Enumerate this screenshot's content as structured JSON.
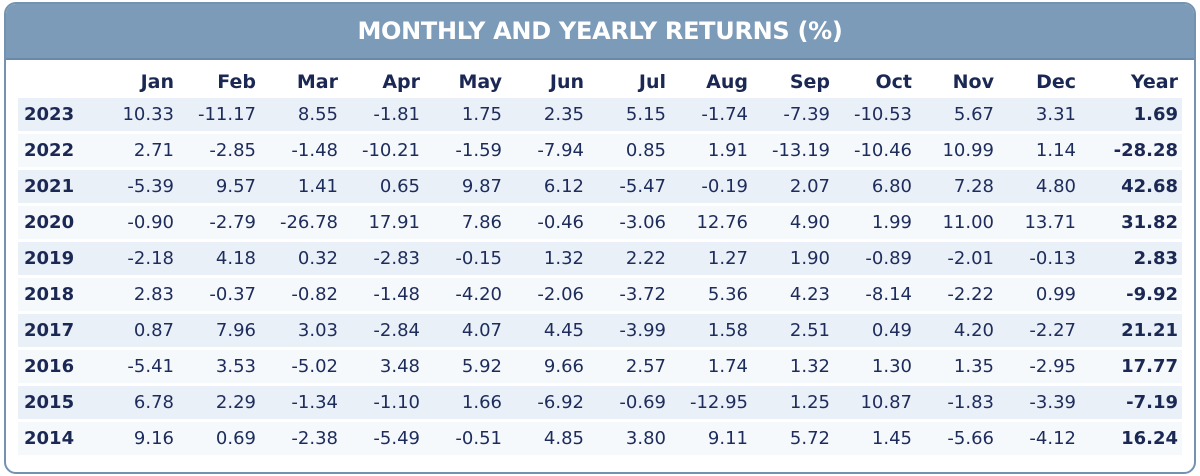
{
  "title": "MONTHLY AND YEARLY RETURNS (%)",
  "columns": [
    "",
    "Jan",
    "Feb",
    "Mar",
    "Apr",
    "May",
    "Jun",
    "Jul",
    "Aug",
    "Sep",
    "Oct",
    "Nov",
    "Dec",
    "Year"
  ],
  "rows": [
    {
      "year": "2023",
      "months": [
        "10.33",
        "-11.17",
        "8.55",
        "-1.81",
        "1.75",
        "2.35",
        "5.15",
        "-1.74",
        "-7.39",
        "-10.53",
        "5.67",
        "3.31"
      ],
      "total": "1.69"
    },
    {
      "year": "2022",
      "months": [
        "2.71",
        "-2.85",
        "-1.48",
        "-10.21",
        "-1.59",
        "-7.94",
        "0.85",
        "1.91",
        "-13.19",
        "-10.46",
        "10.99",
        "1.14"
      ],
      "total": "-28.28"
    },
    {
      "year": "2021",
      "months": [
        "-5.39",
        "9.57",
        "1.41",
        "0.65",
        "9.87",
        "6.12",
        "-5.47",
        "-0.19",
        "2.07",
        "6.80",
        "7.28",
        "4.80"
      ],
      "total": "42.68"
    },
    {
      "year": "2020",
      "months": [
        "-0.90",
        "-2.79",
        "-26.78",
        "17.91",
        "7.86",
        "-0.46",
        "-3.06",
        "12.76",
        "4.90",
        "1.99",
        "11.00",
        "13.71"
      ],
      "total": "31.82"
    },
    {
      "year": "2019",
      "months": [
        "-2.18",
        "4.18",
        "0.32",
        "-2.83",
        "-0.15",
        "1.32",
        "2.22",
        "1.27",
        "1.90",
        "-0.89",
        "-2.01",
        "-0.13"
      ],
      "total": "2.83"
    },
    {
      "year": "2018",
      "months": [
        "2.83",
        "-0.37",
        "-0.82",
        "-1.48",
        "-4.20",
        "-2.06",
        "-3.72",
        "5.36",
        "4.23",
        "-8.14",
        "-2.22",
        "0.99"
      ],
      "total": "-9.92"
    },
    {
      "year": "2017",
      "months": [
        "0.87",
        "7.96",
        "3.03",
        "-2.84",
        "4.07",
        "4.45",
        "-3.99",
        "1.58",
        "2.51",
        "0.49",
        "4.20",
        "-2.27"
      ],
      "total": "21.21"
    },
    {
      "year": "2016",
      "months": [
        "-5.41",
        "3.53",
        "-5.02",
        "3.48",
        "5.92",
        "9.66",
        "2.57",
        "1.74",
        "1.32",
        "1.30",
        "1.35",
        "-2.95"
      ],
      "total": "17.77"
    },
    {
      "year": "2015",
      "months": [
        "6.78",
        "2.29",
        "-1.34",
        "-1.10",
        "1.66",
        "-6.92",
        "-0.69",
        "-12.95",
        "1.25",
        "10.87",
        "-1.83",
        "-3.39"
      ],
      "total": "-7.19"
    },
    {
      "year": "2014",
      "months": [
        "9.16",
        "0.69",
        "-2.38",
        "-5.49",
        "-0.51",
        "4.85",
        "3.80",
        "9.11",
        "5.72",
        "1.45",
        "-5.66",
        "-4.12"
      ],
      "total": "16.24"
    }
  ],
  "colors": {
    "header_bg": "#7b9bb9",
    "border": "#7392b0",
    "row_band": "#eaf0f7",
    "text": "#1b2853"
  }
}
